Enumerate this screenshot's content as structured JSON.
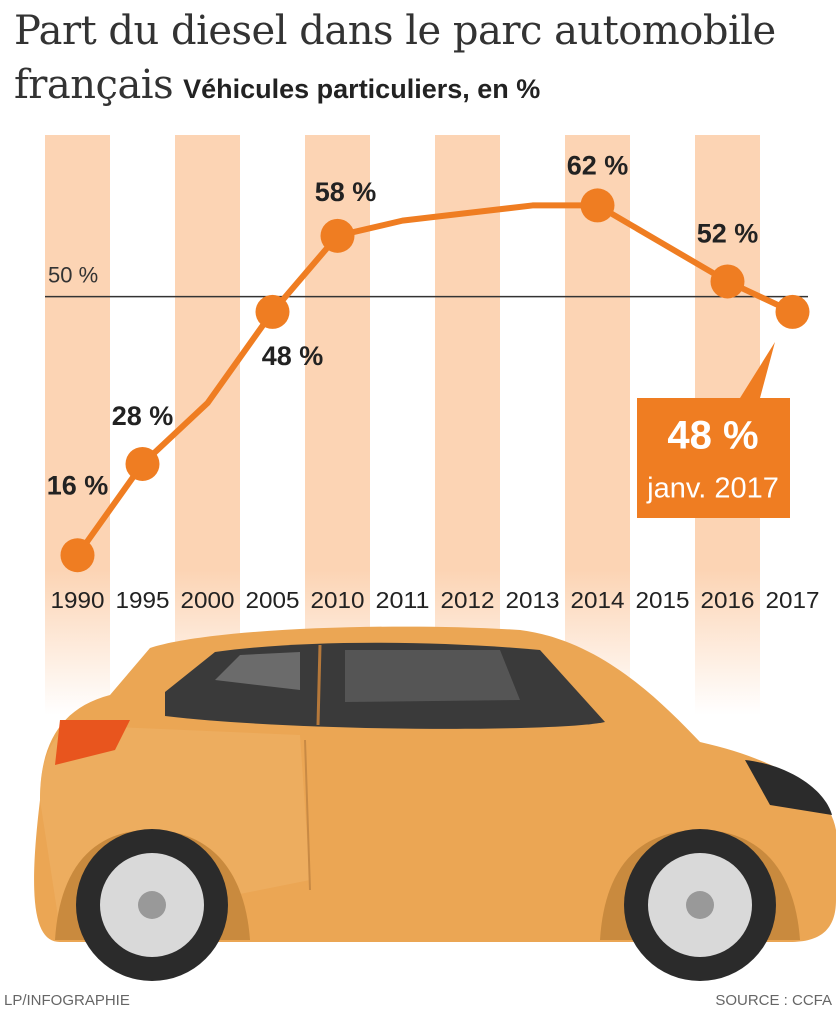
{
  "chart_data": {
    "type": "line",
    "title": "Part du diesel dans le parc automobile français",
    "subtitle": "Véhicules particuliers, en %",
    "categories": [
      "1990",
      "1995",
      "2000",
      "2005",
      "2010",
      "2011",
      "2012",
      "2013",
      "2014",
      "2015",
      "2016",
      "2017"
    ],
    "values": [
      16,
      28,
      36,
      48,
      58,
      60,
      61,
      62,
      62,
      57,
      52,
      48
    ],
    "value_labels": [
      "16 %",
      "28 %",
      null,
      "48 %",
      "58 %",
      null,
      null,
      null,
      "62 %",
      null,
      "52 %",
      "48 %"
    ],
    "color": "#ef7d22",
    "ylim": [
      13,
      71
    ],
    "reference_line": {
      "value": 50,
      "label": "50 %"
    },
    "annotation": "janv. 2017",
    "credit": "LP/INFOGRAPHIE",
    "source": "SOURCE : CCFA"
  }
}
